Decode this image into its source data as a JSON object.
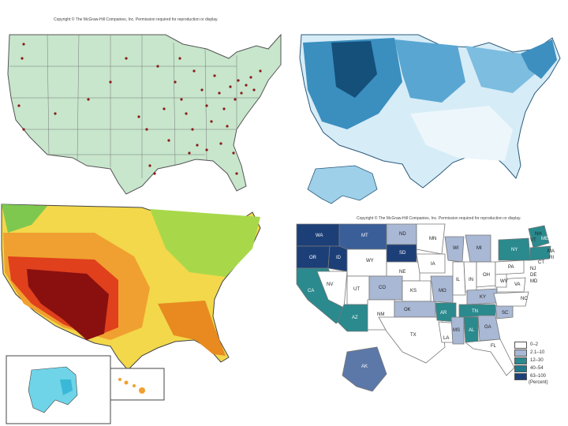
{
  "panels": {
    "cities": {
      "copyright": "Copyright © The McGraw-Hill Companies, Inc. Permission required for reproduction or display."
    },
    "snow": {},
    "heat": {},
    "states": {
      "copyright": "Copyright © The McGraw-Hill Companies, Inc. Permission required for reproduction or display.",
      "legend": {
        "items": [
          {
            "label": "0–2",
            "color": "#ffffff"
          },
          {
            "label": "2.1–10",
            "color": "#a9b8d4"
          },
          {
            "label": "12–30",
            "color": "#2a8a8e"
          },
          {
            "label": "40–54",
            "color": "#1f7a8c"
          },
          {
            "label": "63–100",
            "color": "#1c3f78"
          }
        ],
        "unit": "(Percent)"
      },
      "labels": [
        "WA",
        "MT",
        "ND",
        "OR",
        "ID",
        "SD",
        "WY",
        "MN",
        "WI",
        "MI",
        "NY",
        "ME",
        "VT",
        "NH",
        "MA",
        "RI",
        "CT",
        "NJ",
        "DE",
        "MD",
        "PA",
        "OH",
        "IN",
        "IL",
        "IA",
        "NE",
        "NV",
        "UT",
        "CO",
        "KS",
        "MO",
        "KY",
        "WV",
        "VA",
        "NC",
        "SC",
        "GA",
        "FL",
        "AL",
        "MS",
        "TN",
        "AR",
        "LA",
        "TX",
        "OK",
        "NM",
        "AZ",
        "CA",
        "AK"
      ]
    }
  }
}
